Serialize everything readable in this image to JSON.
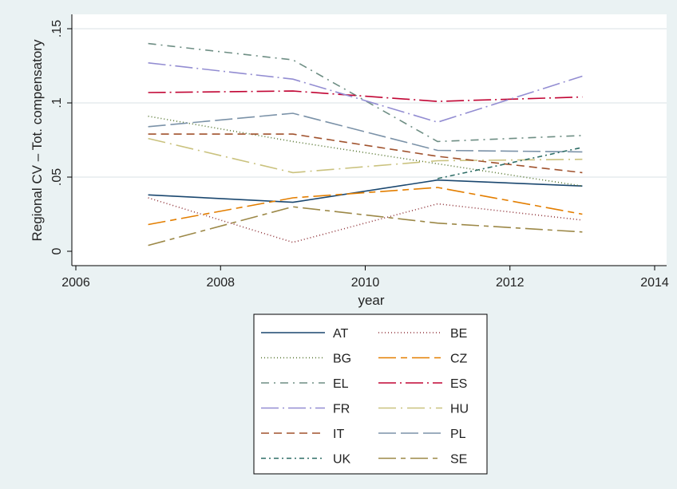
{
  "chart_data": {
    "type": "line",
    "xlabel": "year",
    "ylabel": "Regional CV – Tot. compensatory",
    "xlim": [
      2006,
      2014
    ],
    "ylim": [
      0,
      0.15
    ],
    "xticks": [
      2006,
      2008,
      2010,
      2012,
      2014
    ],
    "yticks": [
      0,
      0.05,
      0.1,
      0.15
    ],
    "ytick_labels": [
      "0",
      ".05",
      ".1",
      ".15"
    ],
    "grid": "horizontal",
    "legend_position": "bottom",
    "series": [
      {
        "name": "AT",
        "color": "#1a476f",
        "dash": "",
        "x": [
          2007,
          2009,
          2011,
          2013
        ],
        "y": [
          0.038,
          0.033,
          0.048,
          0.044
        ]
      },
      {
        "name": "BE",
        "color": "#90353b",
        "dash": "1 3",
        "x": [
          2007,
          2009,
          2011,
          2013
        ],
        "y": [
          0.036,
          0.006,
          0.032,
          0.021
        ]
      },
      {
        "name": "BG",
        "color": "#55752f",
        "dash": "1 3",
        "x": [
          2007,
          2009,
          2011,
          2013
        ],
        "y": [
          0.091,
          0.074,
          0.059,
          0.044
        ]
      },
      {
        "name": "CZ",
        "color": "#e37e00",
        "dash": "22 6 8 6",
        "x": [
          2007,
          2009,
          2011,
          2013
        ],
        "y": [
          0.018,
          0.036,
          0.043,
          0.025
        ]
      },
      {
        "name": "EL",
        "color": "#6e8e84",
        "dash": "10 6 2 6",
        "x": [
          2007,
          2009,
          2011,
          2013
        ],
        "y": [
          0.14,
          0.129,
          0.074,
          0.078
        ]
      },
      {
        "name": "ES",
        "color": "#c10534",
        "dash": "22 5 2 5",
        "x": [
          2007,
          2009,
          2011,
          2013
        ],
        "y": [
          0.107,
          0.108,
          0.101,
          0.104
        ]
      },
      {
        "name": "FR",
        "color": "#938dd2",
        "dash": "22 5 2 5",
        "x": [
          2007,
          2009,
          2011,
          2013
        ],
        "y": [
          0.127,
          0.116,
          0.087,
          0.118
        ]
      },
      {
        "name": "HU",
        "color": "#cac27e",
        "dash": "22 6 2 6",
        "x": [
          2007,
          2009,
          2011,
          2013
        ],
        "y": [
          0.076,
          0.053,
          0.061,
          0.062
        ]
      },
      {
        "name": "IT",
        "color": "#a0522d",
        "dash": "10 6",
        "x": [
          2007,
          2009,
          2011,
          2013
        ],
        "y": [
          0.079,
          0.079,
          0.064,
          0.053
        ]
      },
      {
        "name": "PL",
        "color": "#7b92a8",
        "dash": "22 6",
        "x": [
          2007,
          2009,
          2011,
          2013
        ],
        "y": [
          0.084,
          0.093,
          0.068,
          0.067
        ]
      },
      {
        "name": "UK",
        "color": "#2d6d66",
        "dash": "6 4 2 4",
        "x": [
          2011,
          2013
        ],
        "y": [
          0.049,
          0.07
        ]
      },
      {
        "name": "SE",
        "color": "#9c8847",
        "dash": "22 6 6 6",
        "x": [
          2007,
          2009,
          2011,
          2013
        ],
        "y": [
          0.004,
          0.03,
          0.019,
          0.013
        ]
      }
    ]
  }
}
